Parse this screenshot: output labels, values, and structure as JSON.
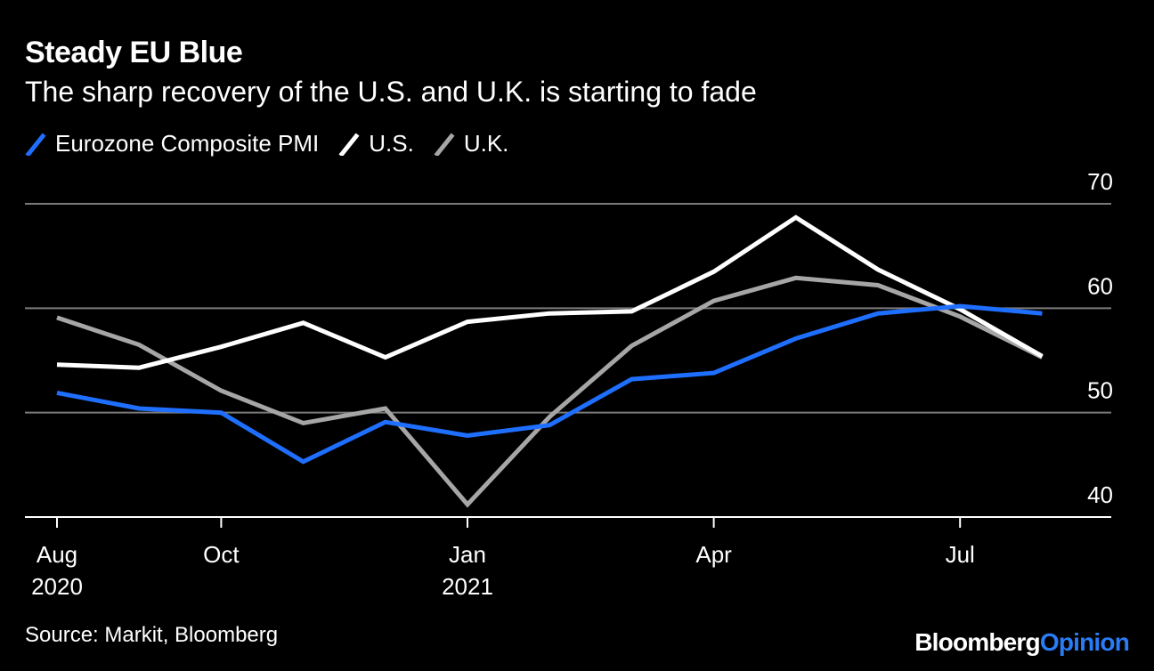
{
  "chart_data": {
    "type": "line",
    "title": "Steady EU Blue",
    "subtitle": "The sharp recovery of the U.S. and U.K. is starting to fade",
    "x": [
      "Aug 2020",
      "Sep 2020",
      "Oct 2020",
      "Nov 2020",
      "Dec 2020",
      "Jan 2021",
      "Feb 2021",
      "Mar 2021",
      "Apr 2021",
      "May 2021",
      "Jun 2021",
      "Jul 2021",
      "Aug 2021"
    ],
    "series": [
      {
        "name": "Eurozone Composite PMI",
        "color": "#1f6fff",
        "values": [
          51.9,
          50.4,
          50.0,
          45.3,
          49.1,
          47.8,
          48.8,
          53.2,
          53.8,
          57.1,
          59.5,
          60.2,
          59.5
        ]
      },
      {
        "name": "U.S.",
        "color": "#ffffff",
        "values": [
          54.6,
          54.3,
          56.3,
          58.6,
          55.3,
          58.7,
          59.5,
          59.7,
          63.5,
          68.7,
          63.7,
          59.9,
          55.4
        ]
      },
      {
        "name": "U.K.",
        "color": "#a6a6a6",
        "values": [
          59.1,
          56.5,
          52.1,
          49.0,
          50.4,
          41.2,
          49.6,
          56.4,
          60.7,
          62.9,
          62.2,
          59.2,
          55.3
        ]
      }
    ],
    "yticks": [
      70,
      60,
      50,
      40
    ],
    "ylim": [
      40,
      70
    ],
    "xticks": [
      {
        "label": "Aug",
        "year": "2020"
      },
      {
        "label": "Oct",
        "year": ""
      },
      {
        "label": "Jan",
        "year": "2021"
      },
      {
        "label": "Apr",
        "year": ""
      },
      {
        "label": "Jul",
        "year": ""
      }
    ],
    "xlabel": "",
    "ylabel": "",
    "grid": true,
    "legend": "top-left"
  },
  "footer": {
    "source": "Source: Markit, Bloomberg",
    "brand_a": "Bloomberg",
    "brand_b": "Opinion"
  }
}
